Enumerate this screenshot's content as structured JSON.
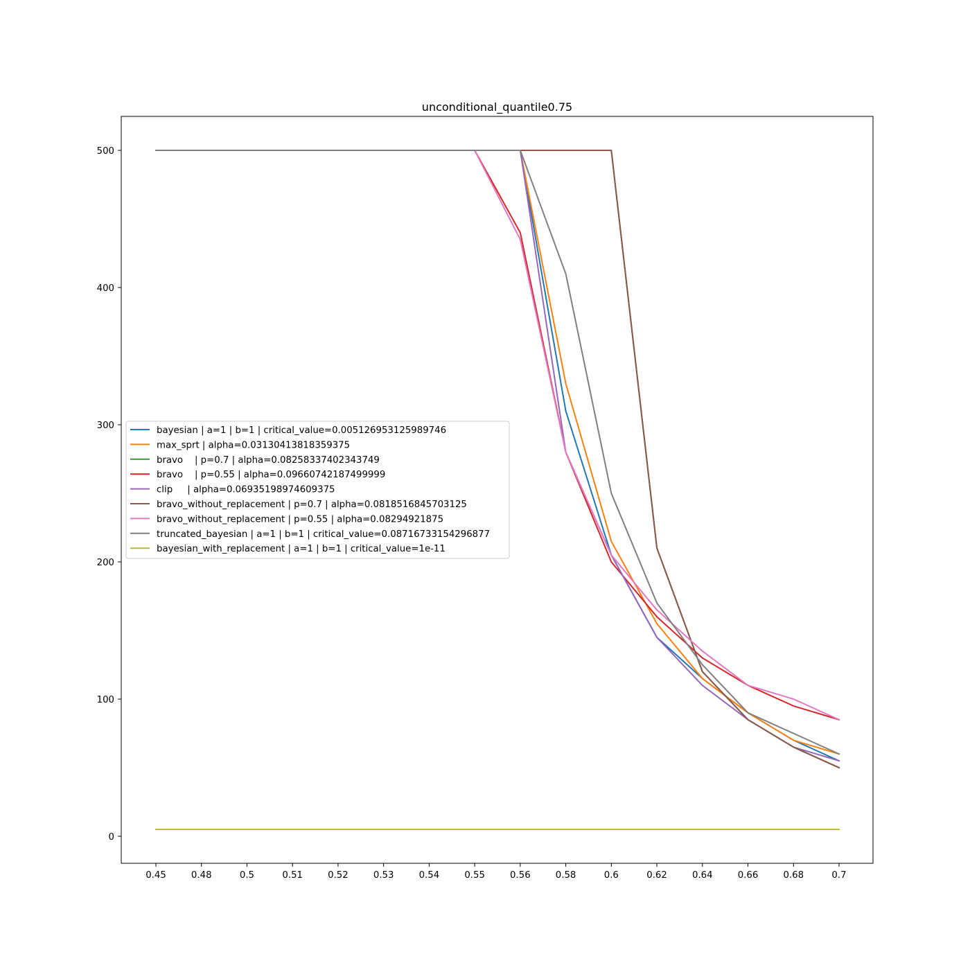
{
  "chart_data": {
    "type": "line",
    "title": "unconditional_quantile0.75",
    "xlabel": "",
    "ylabel": "",
    "x_axis_kind": "categorical",
    "categories": [
      "0.45",
      "0.48",
      "0.5",
      "0.51",
      "0.52",
      "0.53",
      "0.54",
      "0.55",
      "0.56",
      "0.58",
      "0.6",
      "0.62",
      "0.64",
      "0.66",
      "0.68",
      "0.7"
    ],
    "ylim": [
      -20,
      524
    ],
    "yticks": [
      0,
      100,
      200,
      300,
      400,
      500
    ],
    "grid": false,
    "legend_position": "center-left",
    "series": [
      {
        "name": "bayesian | a=1 | b=1 | critical_value=0.005126953125989746",
        "color": "#1f77b4",
        "values": [
          500,
          500,
          500,
          500,
          500,
          500,
          500,
          500,
          500,
          310,
          205,
          145,
          115,
          90,
          70,
          55
        ]
      },
      {
        "name": "max_sprt | alpha=0.03130413818359375",
        "color": "#ff7f0e",
        "values": [
          500,
          500,
          500,
          500,
          500,
          500,
          500,
          500,
          500,
          330,
          215,
          155,
          115,
          90,
          70,
          60
        ]
      },
      {
        "name": "bravo    | p=0.7 | alpha=0.08258337402343749",
        "color": "#2ca02c",
        "values": [
          500,
          500,
          500,
          500,
          500,
          500,
          500,
          500,
          500,
          500,
          500,
          210,
          120,
          85,
          65,
          50
        ]
      },
      {
        "name": "bravo    | p=0.55 | alpha=0.09660742187499999",
        "color": "#d62728",
        "values": [
          500,
          500,
          500,
          500,
          500,
          500,
          500,
          500,
          440,
          280,
          200,
          160,
          130,
          110,
          95,
          85
        ]
      },
      {
        "name": "clip     | alpha=0.06935198974609375",
        "color": "#9467bd",
        "values": [
          500,
          500,
          500,
          500,
          500,
          500,
          500,
          500,
          500,
          280,
          205,
          145,
          110,
          85,
          65,
          55
        ]
      },
      {
        "name": "bravo_without_replacement | p=0.7 | alpha=0.0818516845703125",
        "color": "#8c564b",
        "values": [
          500,
          500,
          500,
          500,
          500,
          500,
          500,
          500,
          500,
          500,
          500,
          210,
          120,
          85,
          65,
          50
        ]
      },
      {
        "name": "bravo_without_replacement | p=0.55 | alpha=0.08294921875",
        "color": "#e377c2",
        "values": [
          500,
          500,
          500,
          500,
          500,
          500,
          500,
          500,
          435,
          280,
          205,
          165,
          135,
          110,
          100,
          85
        ]
      },
      {
        "name": "truncated_bayesian | a=1 | b=1 | critical_value=0.08716733154296877",
        "color": "#7f7f7f",
        "values": [
          500,
          500,
          500,
          500,
          500,
          500,
          500,
          500,
          500,
          410,
          250,
          170,
          125,
          90,
          75,
          60
        ]
      },
      {
        "name": "bayesian_with_replacement | a=1 | b=1 | critical_value=1e-11",
        "color": "#bcbd22",
        "values": [
          5,
          5,
          5,
          5,
          5,
          5,
          5,
          5,
          5,
          5,
          5,
          5,
          5,
          5,
          5,
          5
        ]
      }
    ]
  }
}
